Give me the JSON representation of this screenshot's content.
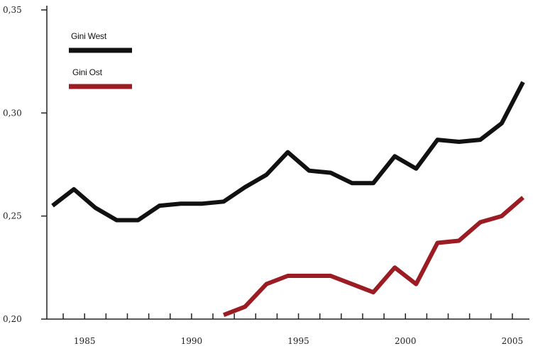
{
  "chart_data": {
    "type": "line",
    "title": "",
    "xlabel": "",
    "ylabel": "",
    "xlim": [
      1983.5,
      2005.6
    ],
    "ylim": [
      0.2,
      0.35
    ],
    "x_ticks": [
      1984,
      1985,
      1986,
      1987,
      1988,
      1989,
      1990,
      1991,
      1992,
      1993,
      1994,
      1995,
      1996,
      1997,
      1998,
      1999,
      2000,
      2001,
      2002,
      2003,
      2004,
      2005
    ],
    "x_tick_labels": [
      {
        "x": 1985,
        "label": "1985"
      },
      {
        "x": 1990,
        "label": "1990"
      },
      {
        "x": 1995,
        "label": "1995"
      },
      {
        "x": 2000,
        "label": "2000"
      },
      {
        "x": 2005,
        "label": "2005"
      }
    ],
    "y_tick_labels": [
      {
        "y": 0.2,
        "label": "0,20"
      },
      {
        "y": 0.25,
        "label": "0,25"
      },
      {
        "y": 0.3,
        "label": "0,30"
      },
      {
        "y": 0.35,
        "label": "0,35"
      }
    ],
    "legend_position": "top-left",
    "grid": false,
    "series": [
      {
        "name": "Gini West",
        "color": "#111111",
        "x": [
          1983.5,
          1984.5,
          1985.5,
          1986.5,
          1987.5,
          1988.5,
          1989.5,
          1990.5,
          1991.5,
          1992.5,
          1993.5,
          1994.5,
          1995.5,
          1996.5,
          1997.5,
          1998.5,
          1999.5,
          2000.5,
          2001.5,
          2002.5,
          2003.5,
          2004.5,
          2005.5
        ],
        "y": [
          0.255,
          0.263,
          0.254,
          0.248,
          0.248,
          0.255,
          0.256,
          0.256,
          0.257,
          0.264,
          0.27,
          0.281,
          0.272,
          0.271,
          0.266,
          0.266,
          0.279,
          0.273,
          0.287,
          0.286,
          0.287,
          0.295,
          0.315
        ]
      },
      {
        "name": "Gini Ost",
        "color": "#9b1c22",
        "x": [
          1991.5,
          1992.5,
          1993.5,
          1994.5,
          1995.5,
          1996.5,
          1997.5,
          1998.5,
          1999.5,
          2000.5,
          2001.5,
          2002.5,
          2003.5,
          2004.5,
          2005.5
        ],
        "y": [
          0.202,
          0.206,
          0.217,
          0.221,
          0.221,
          0.221,
          0.217,
          0.213,
          0.225,
          0.217,
          0.237,
          0.238,
          0.247,
          0.25,
          0.259
        ]
      }
    ]
  }
}
